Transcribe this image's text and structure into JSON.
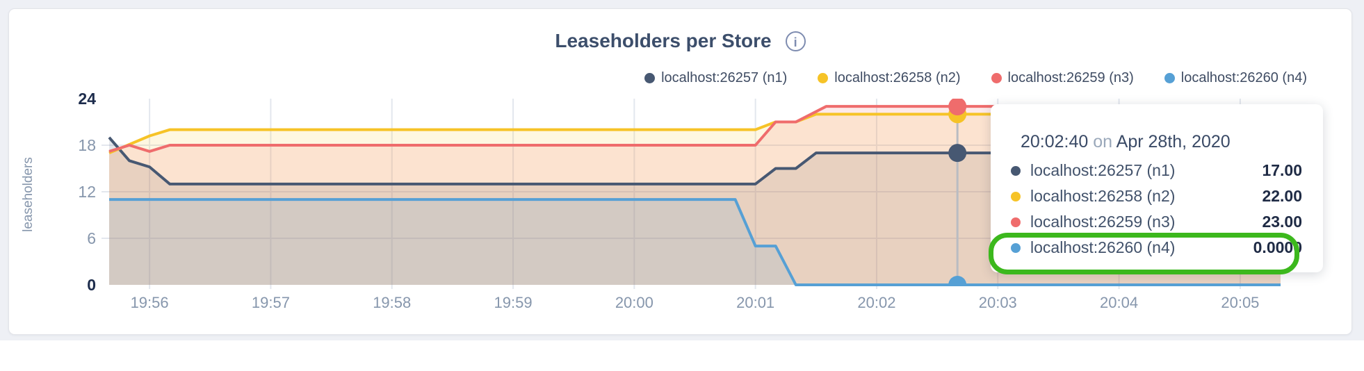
{
  "page": {
    "background_color": "#eef0f5"
  },
  "chart": {
    "title": "Leaseholders per Store",
    "info_icon": "i",
    "y_axis_label": "leaseholders",
    "legend": [
      {
        "label": "localhost:26257 (n1)",
        "color": "#475872"
      },
      {
        "label": "localhost:26258 (n2)",
        "color": "#f6c327"
      },
      {
        "label": "localhost:26259 (n3)",
        "color": "#ef6c6c"
      },
      {
        "label": "localhost:26260 (n4)",
        "color": "#56a0d5"
      }
    ]
  },
  "chart_data": {
    "type": "area",
    "title": "Leaseholders per Store",
    "xlabel": "",
    "ylabel": "leaseholders",
    "ylim": [
      0,
      24
    ],
    "y_ticks": [
      0,
      6,
      12,
      18,
      24
    ],
    "y_ticks_bold": [
      0,
      24
    ],
    "grid": true,
    "legend_position": "top-right",
    "x_start_time": "19:55:40",
    "x_domain_seconds": [
      0,
      580
    ],
    "x_ticks": [
      {
        "t": 20,
        "label": "19:56"
      },
      {
        "t": 80,
        "label": "19:57"
      },
      {
        "t": 140,
        "label": "19:58"
      },
      {
        "t": 200,
        "label": "19:59"
      },
      {
        "t": 260,
        "label": "20:00"
      },
      {
        "t": 320,
        "label": "20:01"
      },
      {
        "t": 380,
        "label": "20:02"
      },
      {
        "t": 440,
        "label": "20:03"
      },
      {
        "t": 500,
        "label": "20:04"
      },
      {
        "t": 560,
        "label": "20:05"
      }
    ],
    "series": [
      {
        "name": "localhost:26257 (n1)",
        "color": "#475872",
        "points": [
          [
            0,
            19
          ],
          [
            10,
            16
          ],
          [
            20,
            15.2
          ],
          [
            30,
            13
          ],
          [
            320,
            13
          ],
          [
            330,
            15
          ],
          [
            340,
            15
          ],
          [
            350,
            17
          ],
          [
            580,
            17
          ]
        ]
      },
      {
        "name": "localhost:26258 (n2)",
        "color": "#f6c327",
        "points": [
          [
            0,
            17
          ],
          [
            20,
            19.2
          ],
          [
            30,
            20
          ],
          [
            320,
            20
          ],
          [
            330,
            21
          ],
          [
            340,
            21
          ],
          [
            350,
            22
          ],
          [
            580,
            22
          ]
        ]
      },
      {
        "name": "localhost:26259 (n3)",
        "color": "#ef6c6c",
        "points": [
          [
            0,
            17.2
          ],
          [
            10,
            18
          ],
          [
            20,
            17.2
          ],
          [
            30,
            18
          ],
          [
            320,
            18
          ],
          [
            330,
            21
          ],
          [
            340,
            21
          ],
          [
            355,
            23
          ],
          [
            580,
            23
          ]
        ]
      },
      {
        "name": "localhost:26260 (n4)",
        "color": "#56a0d5",
        "points": [
          [
            0,
            11
          ],
          [
            310,
            11
          ],
          [
            320,
            5
          ],
          [
            330,
            5
          ],
          [
            340,
            0
          ],
          [
            580,
            0
          ]
        ]
      }
    ],
    "hover": {
      "t": 420,
      "time_label": "20:02:40",
      "values": [
        17,
        22,
        23,
        0
      ]
    }
  },
  "tooltip": {
    "time": "20:02:40",
    "connector": "on",
    "date": "Apr 28th, 2020",
    "highlight_color": "#3cb81d",
    "rows": [
      {
        "label": "localhost:26257 (n1)",
        "value": "17.00",
        "color": "#475872",
        "highlighted": false
      },
      {
        "label": "localhost:26258 (n2)",
        "value": "22.00",
        "color": "#f6c327",
        "highlighted": false
      },
      {
        "label": "localhost:26259 (n3)",
        "value": "23.00",
        "color": "#ef6c6c",
        "highlighted": false
      },
      {
        "label": "localhost:26260 (n4)",
        "value": "0.0000",
        "color": "#56a0d5",
        "highlighted": true
      }
    ]
  }
}
